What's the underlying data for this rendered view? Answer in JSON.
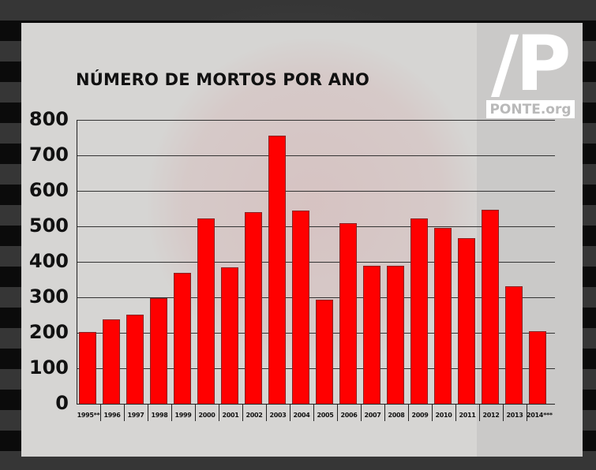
{
  "chart_data": {
    "type": "bar",
    "title": "NÚMERO DE MORTOS POR ANO",
    "xlabel": "",
    "ylabel": "",
    "ylim": [
      0,
      800
    ],
    "yticks": [
      "0",
      "100",
      "200",
      "300",
      "400",
      "500",
      "600",
      "700",
      "800"
    ],
    "grid": true,
    "legend": null,
    "bar_color": "#ff0000",
    "categories": [
      "1995**",
      "1996",
      "1997",
      "1998",
      "1999",
      "2000",
      "2001",
      "2002",
      "2003",
      "2004",
      "2005",
      "2006",
      "2007",
      "2008",
      "2009",
      "2010",
      "2011",
      "2012",
      "2013",
      "2014***"
    ],
    "values": [
      203,
      238,
      252,
      298,
      370,
      523,
      384,
      540,
      755,
      544,
      293,
      510,
      390,
      390,
      523,
      495,
      467,
      547,
      331,
      204
    ]
  },
  "logo": {
    "mark": "/P",
    "text": "PONTE.org"
  },
  "colors": {
    "panel": "#d6d5d3",
    "bar": "#ff0000",
    "text": "#111111",
    "logo": "#ffffff",
    "logo_text": "#b9b9b9"
  }
}
